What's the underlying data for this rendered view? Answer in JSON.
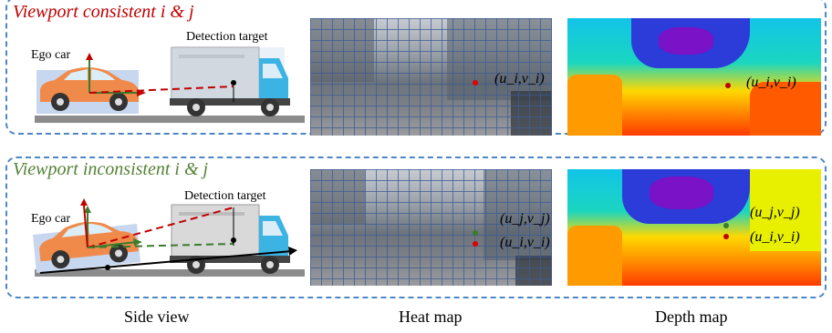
{
  "top": {
    "title": "Viewport consistent i & j",
    "title_color": "#c00000",
    "ego_label": "Ego car",
    "target_label": "Detection target",
    "heat_point_label": "(u_i,v_i)",
    "depth_point_label": "(u_i,v_i)"
  },
  "bottom": {
    "title": "Viewport inconsistent i & j",
    "title_color": "#548235",
    "ego_label": "Ego car",
    "target_label": "Detection target",
    "heat_label_j": "(u_j,v_j)",
    "heat_label_i": "(u_i,v_i)",
    "depth_label_j": "(u_j,v_j)",
    "depth_label_i": "(u_i,v_i)"
  },
  "captions": {
    "side": "Side view",
    "heat": "Heat map",
    "depth": "Depth map"
  },
  "colors": {
    "panel_border": "#4f86c6",
    "point_i": "#e00000",
    "point_j": "#3a7d2c",
    "car_body": "#f08a4b",
    "truck_cab": "#3bb3e3"
  }
}
